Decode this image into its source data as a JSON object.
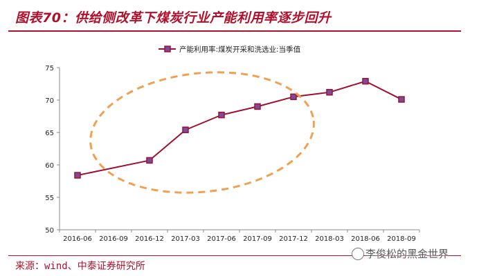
{
  "header": {
    "title": "图表70：供给侧改革下煤炭行业产能利用率逐步回升"
  },
  "footer": {
    "source": "来源：wind、中泰证券研究所",
    "watermark": "李俊松的黑金世界",
    "watermark_icon": "wechat-icon"
  },
  "colors": {
    "title": "#b0102c",
    "line": "#a0102e",
    "marker_fill": "#7b4a9a",
    "annotation": "#f0a050",
    "axis": "#888888"
  },
  "chart_data": {
    "type": "line",
    "categories": [
      "2016-06",
      "2016-09",
      "2016-12",
      "2017-03",
      "2017-06",
      "2017-09",
      "2017-12",
      "2018-03",
      "2018-06",
      "2018-09"
    ],
    "series": [
      {
        "name": "产能利用率:煤炭开采和洗选业:当季值",
        "values": [
          58.4,
          null,
          60.7,
          65.4,
          67.7,
          69.0,
          70.5,
          71.2,
          72.9,
          70.1
        ]
      }
    ],
    "ylim": [
      50,
      75
    ],
    "yticks": [
      50,
      55,
      60,
      65,
      70,
      75
    ],
    "legend_position": "top",
    "grid": false,
    "annotation": "dashed ellipse highlighting 2016-09 to 2017-12"
  }
}
